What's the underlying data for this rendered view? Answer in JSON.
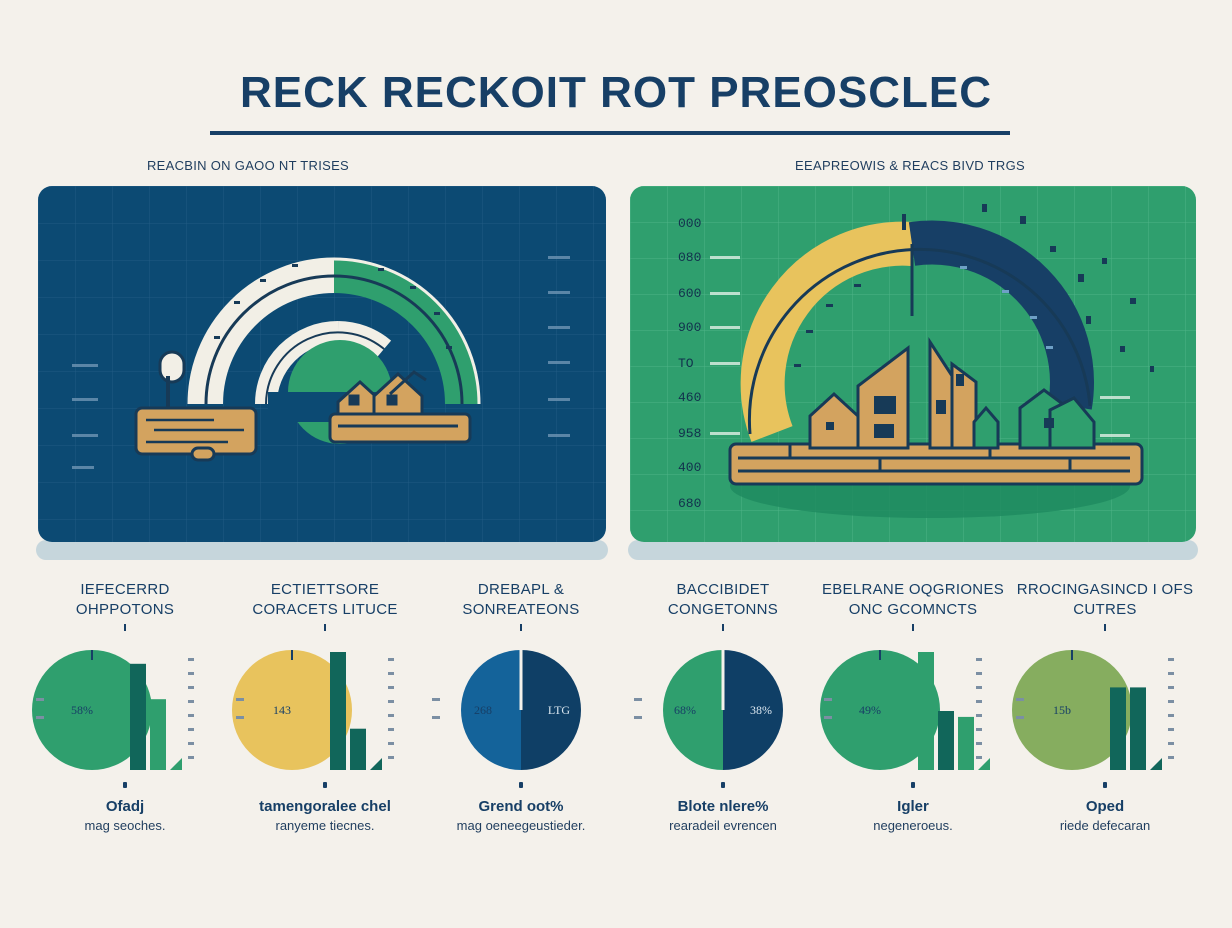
{
  "title": "RECK RECKOIT ROT PREOSCLEC",
  "colors": {
    "navy": "#0c4a73",
    "green": "#2f9f6e",
    "dark_green": "#11665a",
    "yellow": "#e8c35d",
    "wood": "#d3a35f",
    "olive": "#86ad5f",
    "blue": "#14639a",
    "background": "#f4f1eb"
  },
  "panels": {
    "left": {
      "caption": "REACBIN ON GAOO NT TRISES",
      "icon": "gauge-with-houses-illustration"
    },
    "right": {
      "caption": "EEAPREOWIS & REACS BIVD TRGS",
      "icon": "gauge-with-houses-illustration",
      "y_labels": [
        "000",
        "080",
        "600",
        "900",
        "TO",
        "460",
        "958",
        "400",
        "680"
      ]
    }
  },
  "tiles": [
    {
      "title": "IEFECERRD OHPPOTONS",
      "pct": "58%",
      "caption1": "Ofadj",
      "caption2": "mag seoches.",
      "pie_color": "#2f9f6e",
      "fill": 1.0,
      "bars": [
        0.9,
        0.6
      ],
      "bar_colors": [
        "#11665a",
        "#2f9f6e"
      ]
    },
    {
      "title": "ECTIETTSORE CORACETS LITUCE",
      "pct": "143",
      "caption1": "tamengoralee chel",
      "caption2": "ranyeme tiecnes.",
      "pie_color": "#e8c35d",
      "fill": 1.0,
      "bars": [
        1.0,
        0.35
      ],
      "bar_colors": [
        "#11665a",
        "#11665a"
      ]
    },
    {
      "title": "DREBAPL & SONREATEONS",
      "pct": "268",
      "pct2": "LTG",
      "caption1": "Grend oot%",
      "caption2": "mag oeneegeustieder.",
      "pie_color": "#14639a",
      "fill": 0.5,
      "bars": [],
      "bar_colors": []
    },
    {
      "title": "BACCIBIDET CONGETONNS",
      "pct": "68%",
      "pct2": "38%",
      "caption1": "Blote nlere%",
      "caption2": "rearadeil evrencen",
      "pie_color": "#2f9f6e",
      "fill": 0.5,
      "bars": [],
      "bar_colors": []
    },
    {
      "title": "EBELRANE OQGRIONES ONC GCOMNCTS",
      "pct": "49%",
      "caption1": "Igler",
      "caption2": "negeneroeus.",
      "pie_color": "#2f9f6e",
      "fill": 1.0,
      "bars": [
        1.0,
        0.5,
        0.45
      ],
      "bar_colors": [
        "#2f9f6e",
        "#11665a",
        "#2f9f6e"
      ]
    },
    {
      "title": "RROCINGASINCD I OFS CUTRES",
      "pct": "15b",
      "caption1": "Oped",
      "caption2": "riede defecaran",
      "pie_color": "#86ad5f",
      "fill": 1.0,
      "bars": [
        0.7,
        0.7
      ],
      "bar_colors": [
        "#11665a",
        "#11665a"
      ]
    }
  ]
}
